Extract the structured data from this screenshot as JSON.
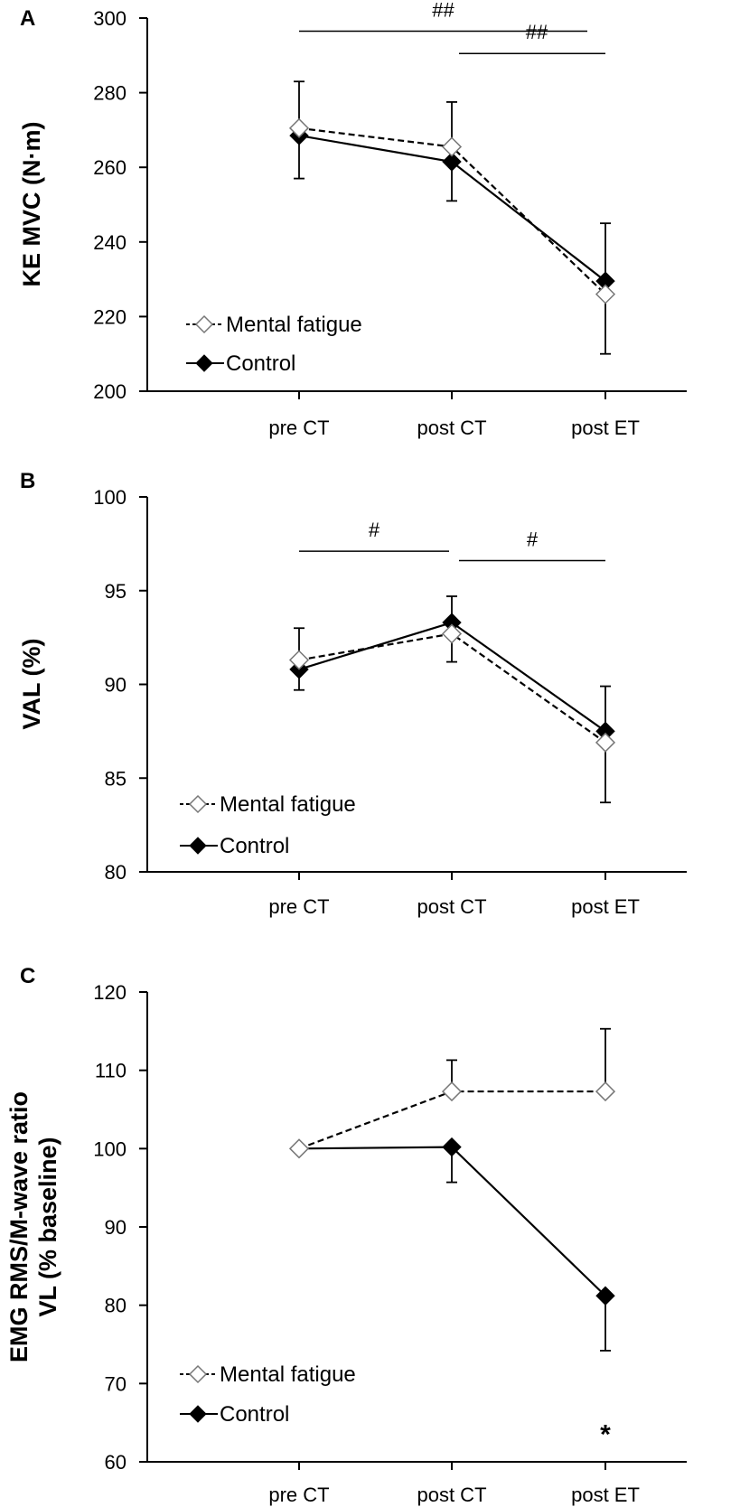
{
  "chart_data": [
    {
      "panel": "A",
      "type": "line",
      "ylabel": "KE MVC (N·m)",
      "xlabel": "",
      "categories": [
        "pre CT",
        "post CT",
        "post ET"
      ],
      "ylim": [
        200,
        300
      ],
      "yticks": [
        200,
        220,
        240,
        260,
        280,
        300
      ],
      "series": [
        {
          "name": "Mental fatigue",
          "marker": "open-diamond",
          "line": "dashed",
          "values": [
            270.5,
            265.5,
            226
          ],
          "err_up": [
            12.5,
            12,
            19
          ],
          "err_down": [
            0,
            0,
            16
          ]
        },
        {
          "name": "Control",
          "marker": "filled-diamond",
          "line": "solid",
          "values": [
            268.5,
            261.5,
            229.5
          ],
          "err_up": [
            0,
            0,
            0
          ],
          "err_down": [
            11.5,
            10.5,
            0
          ]
        }
      ],
      "annotations": [
        {
          "label": "##",
          "from": 0,
          "to": 2,
          "level": 296.5
        },
        {
          "label": "##",
          "from": 1,
          "to": 2,
          "level": 290.5
        }
      ],
      "legend": "bottom-left"
    },
    {
      "panel": "B",
      "type": "line",
      "ylabel": "VAL (%)",
      "xlabel": "",
      "categories": [
        "pre CT",
        "post CT",
        "post ET"
      ],
      "ylim": [
        80,
        100
      ],
      "yticks": [
        80,
        85,
        90,
        95,
        100
      ],
      "series": [
        {
          "name": "Mental fatigue",
          "marker": "open-diamond",
          "line": "dashed",
          "values": [
            91.3,
            92.7,
            86.9
          ],
          "err_up": [
            1.7,
            0,
            0
          ],
          "err_down": [
            0,
            1.5,
            3.2
          ]
        },
        {
          "name": "Control",
          "marker": "filled-diamond",
          "line": "solid",
          "values": [
            90.8,
            93.3,
            87.5
          ],
          "err_up": [
            0,
            1.4,
            2.4
          ],
          "err_down": [
            1.1,
            0,
            0
          ]
        }
      ],
      "annotations": [
        {
          "label": "#",
          "from": 0,
          "to": 1,
          "level": 97.1
        },
        {
          "label": "#",
          "from": 1,
          "to": 2,
          "level": 96.6
        }
      ],
      "legend": "bottom-left"
    },
    {
      "panel": "C",
      "type": "line",
      "ylabel": "EMG RMS/M-wave ratio",
      "ylabel2": "VL (% baseline)",
      "xlabel": "",
      "categories": [
        "pre CT",
        "post CT",
        "post ET"
      ],
      "ylim": [
        60,
        120
      ],
      "yticks": [
        60,
        70,
        80,
        90,
        100,
        110,
        120
      ],
      "series": [
        {
          "name": "Mental fatigue",
          "marker": "open-diamond",
          "line": "dashed",
          "values": [
            100,
            107.3,
            107.3
          ],
          "err_up": [
            0,
            4,
            8
          ],
          "err_down": [
            0,
            0,
            0
          ]
        },
        {
          "name": "Control",
          "marker": "filled-diamond",
          "line": "solid",
          "values": [
            100,
            100.2,
            81.2
          ],
          "err_up": [
            0,
            0,
            0
          ],
          "err_down": [
            0,
            4.5,
            7
          ]
        }
      ],
      "annotations": [
        {
          "label": "*",
          "category": 2,
          "level": 64
        }
      ],
      "legend": "bottom-left"
    }
  ]
}
